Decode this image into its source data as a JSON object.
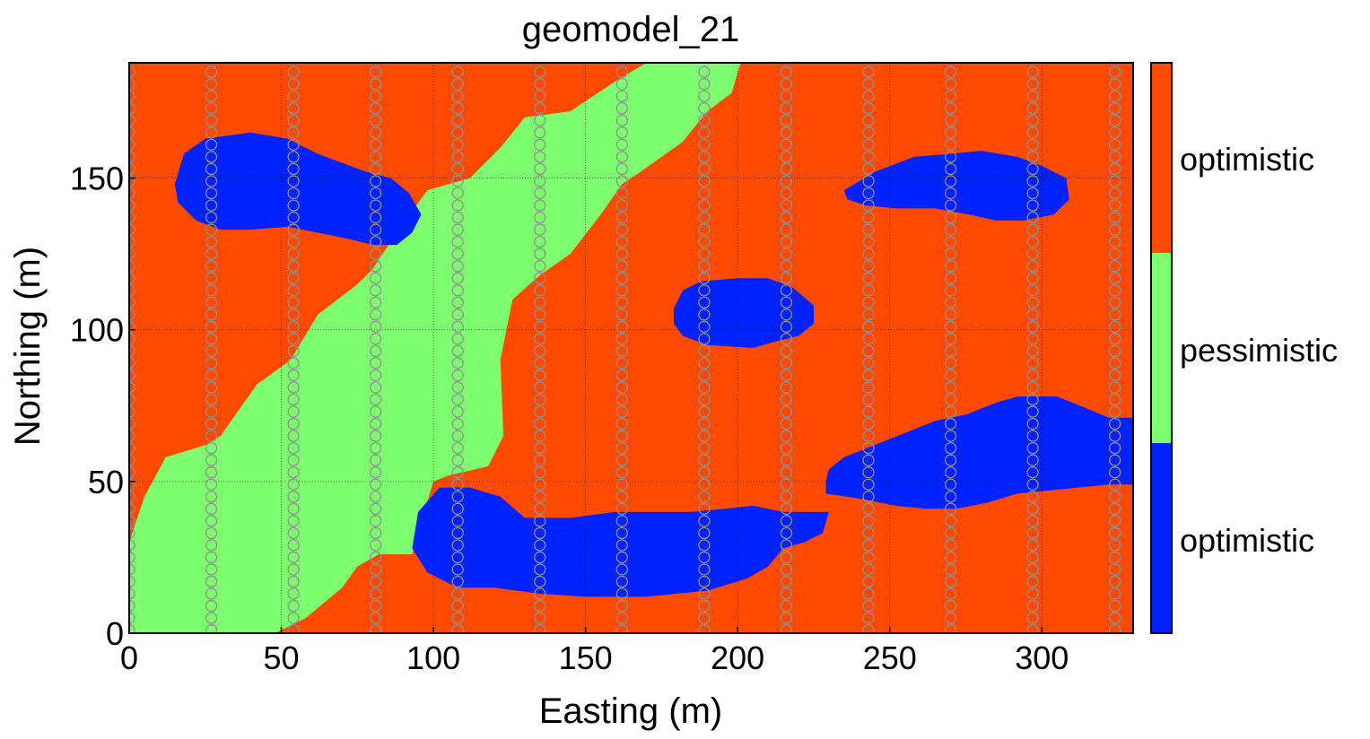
{
  "chart_data": {
    "type": "heatmap",
    "title": "geomodel_21",
    "xlabel": "Easting (m)",
    "ylabel": "Northing (m)",
    "xlim": [
      0,
      330
    ],
    "ylim": [
      0,
      188
    ],
    "xticks": [
      0,
      50,
      100,
      150,
      200,
      250,
      300
    ],
    "yticks": [
      0,
      50,
      100,
      150
    ],
    "grid": true,
    "colors": {
      "orange": "#ff4a00",
      "green": "#7dff70",
      "blue": "#0022ff",
      "well_marker": "#909090"
    },
    "colorbar": {
      "position": "right",
      "labels": [
        "optimistic",
        "pessimistic",
        "optimistic"
      ],
      "segments": [
        "#0022ff",
        "#7dff70",
        "#ff4a00"
      ]
    },
    "background_facies": "optimistic",
    "regions": [
      {
        "facies": "pessimistic",
        "color": "#7dff70",
        "polygon": [
          [
            0,
            0
          ],
          [
            48,
            0
          ],
          [
            58,
            5
          ],
          [
            70,
            15
          ],
          [
            75,
            22
          ],
          [
            82,
            26
          ],
          [
            93,
            26
          ],
          [
            97,
            40
          ],
          [
            100,
            50
          ],
          [
            105,
            52
          ],
          [
            118,
            55
          ],
          [
            123,
            65
          ],
          [
            122,
            90
          ],
          [
            126,
            110
          ],
          [
            135,
            118
          ],
          [
            145,
            125
          ],
          [
            155,
            138
          ],
          [
            162,
            148
          ],
          [
            168,
            152
          ],
          [
            182,
            162
          ],
          [
            190,
            172
          ],
          [
            198,
            178
          ],
          [
            201,
            188
          ],
          [
            170,
            188
          ],
          [
            160,
            182
          ],
          [
            145,
            172
          ],
          [
            130,
            170
          ],
          [
            122,
            160
          ],
          [
            112,
            150
          ],
          [
            98,
            146
          ],
          [
            88,
            132
          ],
          [
            80,
            120
          ],
          [
            75,
            115
          ],
          [
            62,
            105
          ],
          [
            53,
            90
          ],
          [
            42,
            82
          ],
          [
            30,
            65
          ],
          [
            25,
            62
          ],
          [
            12,
            58
          ],
          [
            5,
            45
          ],
          [
            0,
            30
          ]
        ]
      },
      {
        "facies": "optimistic",
        "color": "#0022ff",
        "polygon": [
          [
            15,
            148
          ],
          [
            18,
            158
          ],
          [
            25,
            163
          ],
          [
            40,
            165
          ],
          [
            52,
            163
          ],
          [
            62,
            158
          ],
          [
            70,
            155
          ],
          [
            78,
            152
          ],
          [
            86,
            150
          ],
          [
            92,
            145
          ],
          [
            96,
            138
          ],
          [
            93,
            132
          ],
          [
            88,
            128
          ],
          [
            80,
            128
          ],
          [
            72,
            130
          ],
          [
            62,
            132
          ],
          [
            52,
            134
          ],
          [
            40,
            133
          ],
          [
            30,
            133
          ],
          [
            22,
            136
          ],
          [
            16,
            142
          ]
        ]
      },
      {
        "facies": "optimistic",
        "color": "#0022ff",
        "polygon": [
          [
            93,
            28
          ],
          [
            95,
            40
          ],
          [
            102,
            48
          ],
          [
            112,
            48
          ],
          [
            122,
            45
          ],
          [
            130,
            38
          ],
          [
            145,
            38
          ],
          [
            160,
            40
          ],
          [
            172,
            40
          ],
          [
            185,
            40
          ],
          [
            196,
            41
          ],
          [
            205,
            42
          ],
          [
            215,
            40
          ],
          [
            230,
            40
          ],
          [
            228,
            33
          ],
          [
            222,
            30
          ],
          [
            215,
            28
          ],
          [
            210,
            22
          ],
          [
            203,
            18
          ],
          [
            190,
            14
          ],
          [
            170,
            12
          ],
          [
            150,
            12
          ],
          [
            135,
            13
          ],
          [
            120,
            15
          ],
          [
            108,
            15
          ],
          [
            98,
            20
          ]
        ]
      },
      {
        "facies": "optimistic",
        "color": "#0022ff",
        "polygon": [
          [
            179,
            107
          ],
          [
            182,
            113
          ],
          [
            188,
            116
          ],
          [
            200,
            117
          ],
          [
            210,
            117
          ],
          [
            218,
            114
          ],
          [
            225,
            108
          ],
          [
            225,
            102
          ],
          [
            220,
            98
          ],
          [
            212,
            96
          ],
          [
            205,
            94
          ],
          [
            190,
            95
          ],
          [
            182,
            98
          ],
          [
            179,
            102
          ]
        ]
      },
      {
        "facies": "optimistic",
        "color": "#0022ff",
        "polygon": [
          [
            235,
            146
          ],
          [
            245,
            152
          ],
          [
            258,
            157
          ],
          [
            270,
            158
          ],
          [
            280,
            159
          ],
          [
            292,
            157
          ],
          [
            300,
            154
          ],
          [
            308,
            150
          ],
          [
            309,
            143
          ],
          [
            304,
            138
          ],
          [
            294,
            136
          ],
          [
            285,
            136
          ],
          [
            276,
            138
          ],
          [
            265,
            140
          ],
          [
            252,
            140
          ],
          [
            242,
            141
          ],
          [
            236,
            143
          ]
        ]
      },
      {
        "facies": "optimistic",
        "color": "#0022ff",
        "polygon": [
          [
            229,
            50
          ],
          [
            230,
            54
          ],
          [
            235,
            58
          ],
          [
            245,
            62
          ],
          [
            255,
            66
          ],
          [
            265,
            70
          ],
          [
            275,
            72
          ],
          [
            285,
            76
          ],
          [
            292,
            78
          ],
          [
            305,
            78
          ],
          [
            315,
            74
          ],
          [
            322,
            71
          ],
          [
            330,
            71
          ],
          [
            330,
            49
          ],
          [
            322,
            49
          ],
          [
            312,
            48
          ],
          [
            302,
            47
          ],
          [
            292,
            46
          ],
          [
            282,
            43
          ],
          [
            272,
            41
          ],
          [
            262,
            41
          ],
          [
            252,
            42
          ],
          [
            242,
            44
          ],
          [
            236,
            45
          ],
          [
            229,
            46
          ]
        ]
      }
    ],
    "wells": {
      "x": [
        0,
        27,
        54,
        81,
        108,
        135,
        162,
        189,
        216,
        243,
        270,
        297,
        324
      ],
      "y_top": 185,
      "spacing": 4
    }
  }
}
